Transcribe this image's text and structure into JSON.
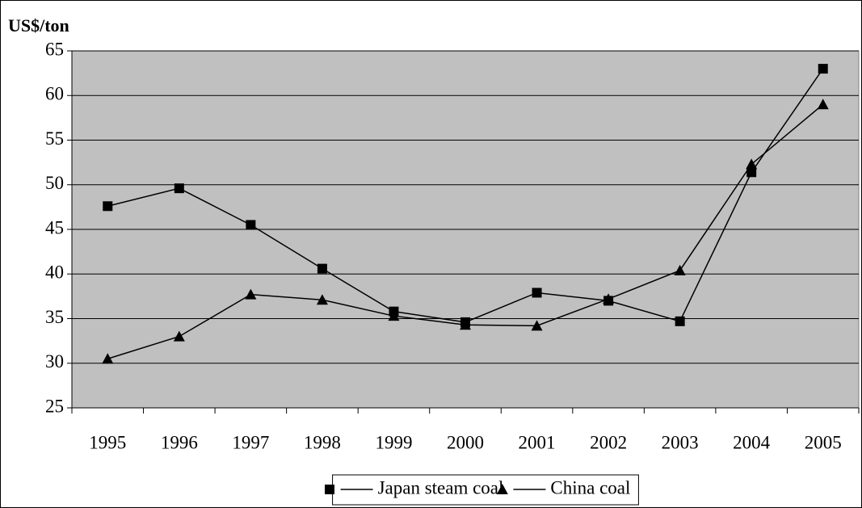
{
  "chart_data": {
    "type": "line",
    "y_label": "US$/ton",
    "categories": [
      "1995",
      "1996",
      "1997",
      "1998",
      "1999",
      "2000",
      "2001",
      "2002",
      "2003",
      "2004",
      "2005"
    ],
    "series": [
      {
        "name": "Japan steam coal",
        "color": "#000000",
        "marker": "square",
        "values": [
          47.6,
          49.6,
          45.5,
          40.6,
          35.8,
          34.6,
          37.9,
          37.0,
          34.7,
          51.4,
          63.0
        ]
      },
      {
        "name": "China coal",
        "color": "#000000",
        "marker": "triangle",
        "values": [
          30.5,
          33.0,
          37.7,
          37.1,
          35.3,
          34.3,
          34.2,
          37.2,
          40.4,
          52.3,
          59.0
        ]
      }
    ],
    "ylim": [
      25,
      65
    ],
    "yticks": [
      25,
      30,
      35,
      40,
      45,
      50,
      55,
      60,
      65
    ],
    "grid": true,
    "plot_background": "#c0c0c0",
    "legend": "bottom"
  }
}
